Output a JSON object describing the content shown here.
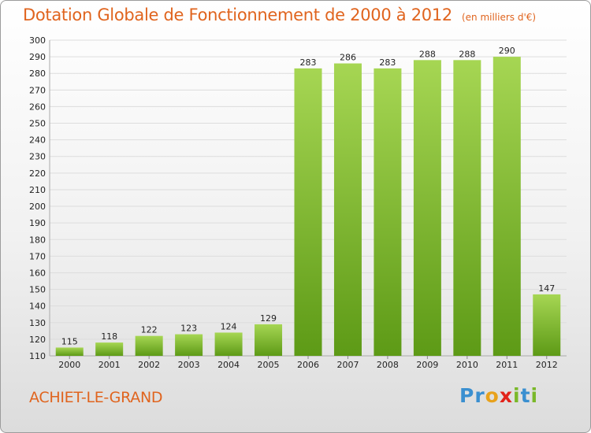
{
  "header": {
    "title": "Dotation Globale de Fonctionnement de 2000 à 2012",
    "subtitle": "(en milliers d'€)"
  },
  "footer": {
    "city": "ACHIET-LE-GRAND",
    "logo": "Proxiti"
  },
  "colors": {
    "text_accent": "#e0641e",
    "bar_light": "#a6d653",
    "bar_dark": "#5d9a16",
    "grid": "#dddddd",
    "logo_letters": [
      "#3a8fd0",
      "#3a8fd0",
      "#e8a21c",
      "#e2231a",
      "#7ab829",
      "#3a8fd0",
      "#7ab829"
    ]
  },
  "chart_data": {
    "type": "bar",
    "title": "Dotation Globale de Fonctionnement de 2000 à 2012",
    "subtitle": "(en milliers d'€)",
    "categories": [
      "2000",
      "2001",
      "2002",
      "2003",
      "2004",
      "2005",
      "2006",
      "2007",
      "2008",
      "2009",
      "2010",
      "2011",
      "2012"
    ],
    "values": [
      115,
      118,
      122,
      123,
      124,
      129,
      283,
      286,
      283,
      288,
      288,
      290,
      147
    ],
    "ylim": [
      110,
      300
    ],
    "yticks": [
      110,
      120,
      130,
      140,
      150,
      160,
      170,
      180,
      190,
      200,
      210,
      220,
      230,
      240,
      250,
      260,
      270,
      280,
      290,
      300
    ],
    "grid": true,
    "legend": false
  }
}
